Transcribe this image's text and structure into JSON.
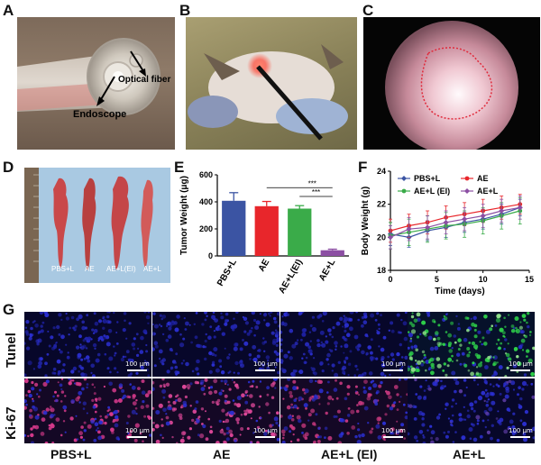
{
  "panels": {
    "a": {
      "letter": "A",
      "label_endoscope": "Endoscope",
      "label_fiber": "Optical fiber"
    },
    "b": {
      "letter": "B"
    },
    "c": {
      "letter": "C"
    },
    "d": {
      "letter": "D",
      "groups": [
        "PBS+L",
        "AE",
        "AE+L(EI)",
        "AE+L"
      ]
    },
    "g": {
      "letter": "G",
      "rows": [
        "Tunel",
        "Ki-67"
      ],
      "columns": [
        "PBS+L",
        "AE",
        "AE+L (EI)",
        "AE+L"
      ],
      "scale_label": "100 μm"
    }
  },
  "chart_data": [
    {
      "panel": "E",
      "type": "bar",
      "categories": [
        "PBS+L",
        "AE",
        "AE+L(EI)",
        "AE+L"
      ],
      "values": [
        408,
        368,
        350,
        42
      ],
      "errors": [
        60,
        35,
        22,
        8
      ],
      "colors": [
        "#3b54a3",
        "#e8262b",
        "#3aab49",
        "#8c4fa3"
      ],
      "ylabel": "Tumor Weight (μg)",
      "ylim": [
        0,
        600
      ],
      "yticks": [
        0,
        200,
        400,
        600
      ],
      "significance": [
        "***",
        "***"
      ]
    },
    {
      "panel": "F",
      "type": "line",
      "xlabel": "Time (days)",
      "ylabel": "Body Weight (g)",
      "xlim": [
        0,
        15
      ],
      "ylim": [
        18,
        24
      ],
      "xticks": [
        0,
        5,
        10,
        15
      ],
      "yticks": [
        18,
        20,
        22,
        24
      ],
      "x": [
        0,
        2,
        4,
        6,
        8,
        10,
        12,
        14
      ],
      "series": [
        {
          "name": "PBS+L",
          "color": "#3b54a3",
          "marker": "diamond",
          "values": [
            20.2,
            20.0,
            20.4,
            20.6,
            20.9,
            21.1,
            21.4,
            21.8
          ],
          "err": [
            0.7,
            0.6,
            0.6,
            0.6,
            0.6,
            0.6,
            0.6,
            0.5
          ]
        },
        {
          "name": "AE",
          "color": "#e8262b",
          "marker": "circle",
          "values": [
            20.4,
            20.7,
            20.9,
            21.2,
            21.4,
            21.6,
            21.8,
            22.0
          ],
          "err": [
            0.7,
            0.7,
            0.7,
            0.7,
            0.7,
            0.7,
            0.7,
            0.6
          ]
        },
        {
          "name": "AE+L (EI)",
          "color": "#3aab49",
          "marker": "circle",
          "values": [
            20.1,
            20.3,
            20.5,
            20.7,
            20.8,
            21.0,
            21.3,
            21.6
          ],
          "err": [
            0.8,
            0.8,
            0.8,
            0.8,
            0.8,
            0.8,
            0.8,
            0.8
          ]
        },
        {
          "name": "AE+L",
          "color": "#8c4fa3",
          "marker": "diamond",
          "values": [
            20.0,
            20.5,
            20.6,
            20.9,
            21.1,
            21.3,
            21.6,
            21.8
          ],
          "err": [
            0.7,
            0.7,
            0.7,
            0.7,
            0.7,
            0.7,
            0.7,
            0.7
          ]
        }
      ]
    }
  ]
}
